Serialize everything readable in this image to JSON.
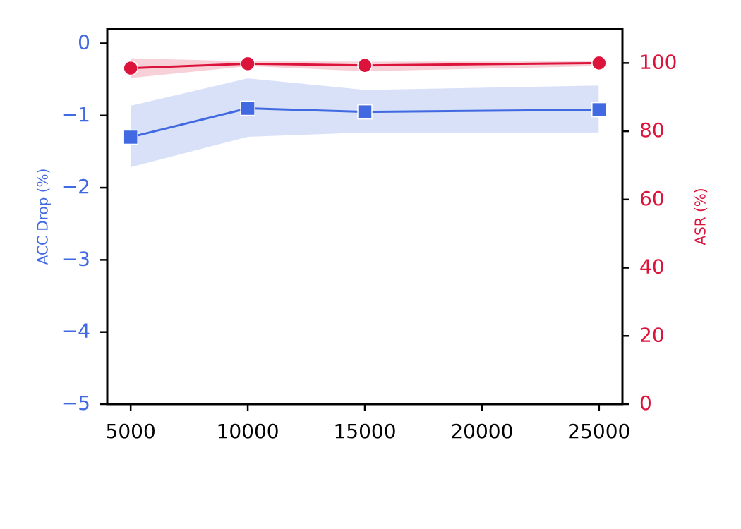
{
  "chart_data": {
    "type": "line",
    "x": [
      5000,
      10000,
      15000,
      25000
    ],
    "xlim": [
      4000,
      26000
    ],
    "xticks": [
      5000,
      10000,
      15000,
      20000,
      25000
    ],
    "ylabel": "ACC Drop (%)",
    "y2label": "ASR (%)",
    "ylim": [
      -5,
      0.2
    ],
    "yticks": [
      {
        "value": -5,
        "label": "−5"
      },
      {
        "value": -4,
        "label": "−4"
      },
      {
        "value": -3,
        "label": "−3"
      },
      {
        "value": -2,
        "label": "−2"
      },
      {
        "value": -1,
        "label": "−1"
      },
      0
    ],
    "y2lim": [
      0,
      110
    ],
    "y2ticks": [
      0,
      20,
      40,
      60,
      80,
      100
    ],
    "series": [
      {
        "name": "ACC Drop",
        "color": "#4169e1",
        "marker": "square",
        "axis": "y",
        "values": [
          -1.3,
          -0.9,
          -0.95,
          -0.92
        ],
        "lower": [
          -1.72,
          -1.3,
          -1.24,
          -1.24
        ],
        "upper": [
          -0.86,
          -0.48,
          -0.64,
          -0.58
        ]
      },
      {
        "name": "ASR",
        "color": "#dc143c",
        "marker": "circle",
        "axis": "y2",
        "values": [
          98.5,
          99.8,
          99.3,
          100
        ],
        "lower": [
          95.5,
          99,
          97.5,
          99
        ],
        "upper": [
          101.5,
          100.6,
          100.5,
          100.6
        ]
      }
    ]
  }
}
